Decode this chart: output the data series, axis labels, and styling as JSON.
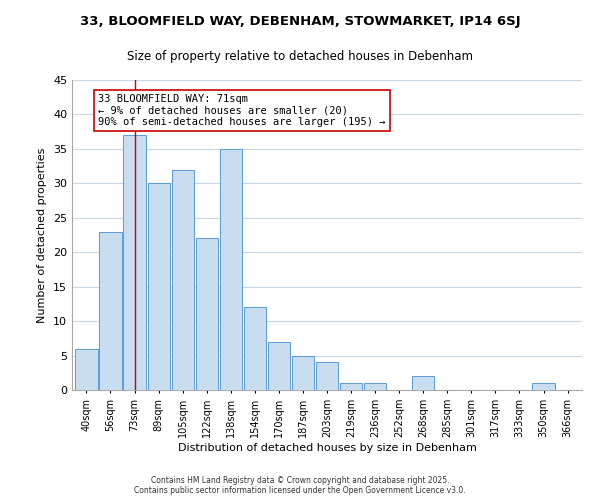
{
  "title": "33, BLOOMFIELD WAY, DEBENHAM, STOWMARKET, IP14 6SJ",
  "subtitle": "Size of property relative to detached houses in Debenham",
  "xlabel": "Distribution of detached houses by size in Debenham",
  "ylabel": "Number of detached properties",
  "bins": [
    "40sqm",
    "56sqm",
    "73sqm",
    "89sqm",
    "105sqm",
    "122sqm",
    "138sqm",
    "154sqm",
    "170sqm",
    "187sqm",
    "203sqm",
    "219sqm",
    "236sqm",
    "252sqm",
    "268sqm",
    "285sqm",
    "301sqm",
    "317sqm",
    "333sqm",
    "350sqm",
    "366sqm"
  ],
  "counts": [
    6,
    23,
    37,
    30,
    32,
    22,
    35,
    12,
    7,
    5,
    4,
    1,
    1,
    0,
    2,
    0,
    0,
    0,
    0,
    1,
    0
  ],
  "bar_color": "#c9ddf0",
  "bar_edge_color": "#5b9bd5",
  "marker_index": 2,
  "marker_color": "#cc0000",
  "annotation_title": "33 BLOOMFIELD WAY: 71sqm",
  "annotation_line1": "← 9% of detached houses are smaller (20)",
  "annotation_line2": "90% of semi-detached houses are larger (195) →",
  "annotation_box_color": "#ffffff",
  "annotation_box_edge": "#cc0000",
  "ylim": [
    0,
    45
  ],
  "yticks": [
    0,
    5,
    10,
    15,
    20,
    25,
    30,
    35,
    40,
    45
  ],
  "footer1": "Contains HM Land Registry data © Crown copyright and database right 2025.",
  "footer2": "Contains public sector information licensed under the Open Government Licence v3.0.",
  "bg_color": "#ffffff",
  "grid_color": "#c8d8e8"
}
